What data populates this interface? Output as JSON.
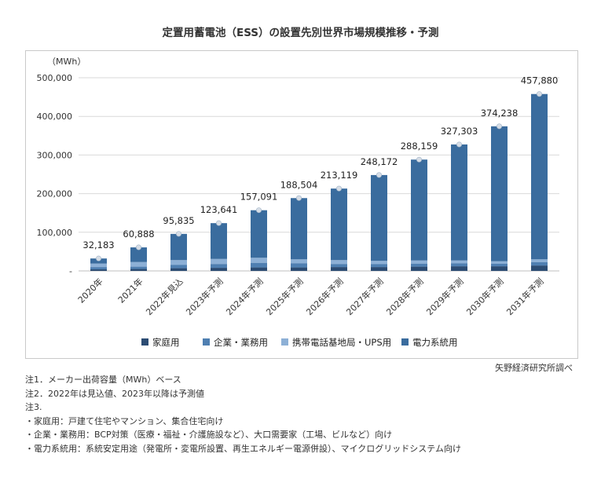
{
  "title": "定置用蓄電池（ESS）の設置先別世界市場規模推移・予測",
  "source": "矢野経済研究所調べ",
  "notes": [
    "注1．メーカー出荷容量（MWh）ベース",
    "注2．2022年は見込値、2023年以降は予測値",
    "注3.",
    "・家庭用：戸建て住宅やマンション、集合住宅向け",
    "・企業・業務用：BCP対策（医療・福祉・介護施設など）、大口需要家（工場、ビルなど）向け",
    "・電力系統用：系統安定用途（発電所・変電所設置、再生エネルギー電源併設）、マイクログリッドシステム向け"
  ],
  "colors": {
    "household": "#2c4c73",
    "business": "#4f7fb1",
    "telecom": "#8db0d6",
    "grid": "#3a6c9e",
    "marker": "#d6dde6",
    "gridline": "#d9d9d9"
  },
  "chart_data": {
    "type": "bar",
    "stacked": true,
    "ylabel": "（MWh）",
    "ylim": [
      0,
      500000
    ],
    "yticks": [
      "-",
      "100,000",
      "200,000",
      "300,000",
      "400,000",
      "500,000"
    ],
    "categories": [
      "2020年",
      "2021年",
      "2022年見込",
      "2023年予測",
      "2024年予測",
      "2025年予測",
      "2026年予測",
      "2027年予測",
      "2028年予測",
      "2029年予測",
      "2030年予測",
      "2031年予測"
    ],
    "totals": [
      32183,
      60888,
      95835,
      123641,
      157091,
      188504,
      213119,
      248172,
      288159,
      327303,
      374238,
      457880
    ],
    "total_labels": [
      "32,183",
      "60,888",
      "95,835",
      "123,641",
      "157,091",
      "188,504",
      "213,119",
      "248,172",
      "288,159",
      "327,303",
      "374,238",
      "457,880"
    ],
    "series": [
      {
        "name": "家庭用",
        "values": [
          4000,
          5000,
          7000,
          8000,
          9000,
          9000,
          10000,
          10000,
          11000,
          12000,
          12000,
          14000
        ]
      },
      {
        "name": "企業・業務用",
        "values": [
          6000,
          6000,
          9000,
          10000,
          12000,
          11000,
          8000,
          8000,
          8000,
          8000,
          7000,
          9000
        ]
      },
      {
        "name": "携帯電話基地局・UPS用",
        "values": [
          9000,
          12000,
          12000,
          13000,
          13000,
          10000,
          10000,
          8000,
          8000,
          7000,
          6000,
          7000
        ]
      },
      {
        "name": "電力系統用",
        "values": [
          13183,
          37888,
          67835,
          92641,
          123091,
          158504,
          185119,
          222172,
          261159,
          300303,
          349238,
          427880
        ]
      }
    ]
  }
}
